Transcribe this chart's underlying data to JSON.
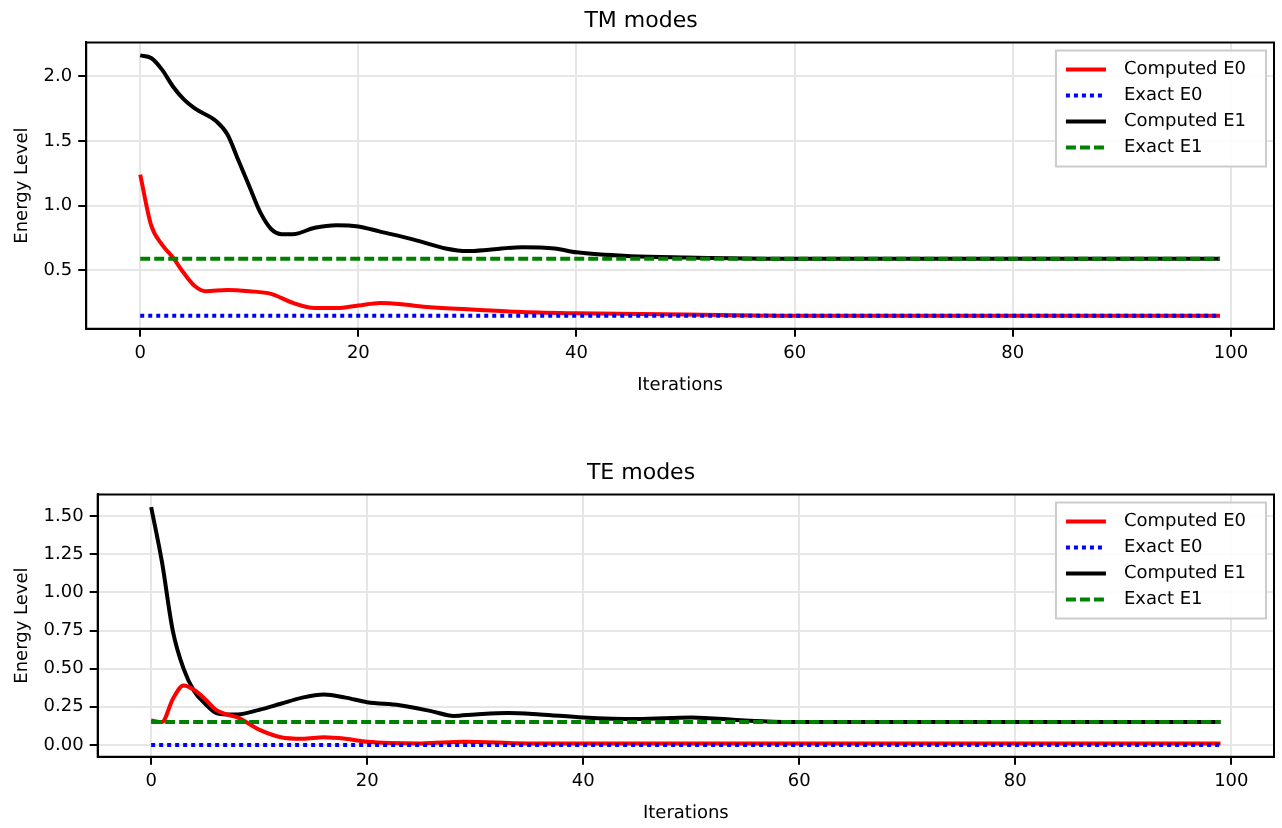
{
  "chart_data": [
    {
      "type": "line",
      "title": "TM modes",
      "xlabel": "Iterations",
      "ylabel": "Energy Level",
      "xlim": [
        -4.95,
        103.95
      ],
      "xticks": [
        0,
        20,
        40,
        60,
        80,
        100
      ],
      "ylim": [
        0.05,
        2.26
      ],
      "yticks": [
        {
          "value": 0.5,
          "label": "0.5"
        },
        {
          "value": 1,
          "label": "1.0"
        },
        {
          "value": 1.5,
          "label": "1.5"
        },
        {
          "value": 2,
          "label": "2.0"
        }
      ],
      "grid": true,
      "legend": "top right",
      "marker": "none",
      "series": [
        {
          "name": "Computed E0",
          "color": "#ff0000",
          "line_style": "solid",
          "x": [
            0,
            1,
            2,
            3,
            4,
            5,
            6,
            8,
            10,
            12,
            14,
            16,
            18,
            20,
            22,
            24,
            26,
            30,
            35,
            40,
            50,
            60,
            99
          ],
          "values": [
            1.24,
            0.85,
            0.7,
            0.6,
            0.48,
            0.38,
            0.34,
            0.35,
            0.34,
            0.32,
            0.25,
            0.21,
            0.21,
            0.23,
            0.25,
            0.24,
            0.22,
            0.2,
            0.18,
            0.17,
            0.16,
            0.15,
            0.15
          ]
        },
        {
          "name": "Exact E0",
          "color": "#0000ff",
          "line_style": "dotted",
          "x": [
            0,
            99
          ],
          "values": [
            0.15,
            0.15
          ]
        },
        {
          "name": "Computed E1",
          "color": "#000000",
          "line_style": "solid",
          "x": [
            0,
            1,
            2,
            3,
            4,
            5,
            7,
            8,
            9,
            10,
            11,
            12,
            13,
            14,
            16,
            18,
            20,
            22,
            25,
            28,
            30,
            32,
            35,
            38,
            40,
            45,
            50,
            60,
            99
          ],
          "values": [
            2.16,
            2.14,
            2.05,
            1.92,
            1.82,
            1.75,
            1.65,
            1.55,
            1.35,
            1.15,
            0.95,
            0.82,
            0.78,
            0.78,
            0.83,
            0.85,
            0.84,
            0.8,
            0.74,
            0.67,
            0.65,
            0.66,
            0.68,
            0.67,
            0.64,
            0.61,
            0.6,
            0.59,
            0.59
          ]
        },
        {
          "name": "Exact E1",
          "color": "#008000",
          "line_style": "dashed",
          "x": [
            0,
            99
          ],
          "values": [
            0.59,
            0.59
          ]
        }
      ]
    },
    {
      "type": "line",
      "title": "TE modes",
      "xlabel": "Iterations",
      "ylabel": "Energy Level",
      "xlim": [
        -4.95,
        103.95
      ],
      "xticks": [
        0,
        20,
        40,
        60,
        80,
        100
      ],
      "ylim": [
        -0.078,
        1.643
      ],
      "yticks": [
        {
          "value": 0,
          "label": "0.00"
        },
        {
          "value": 0.25,
          "label": "0.25"
        },
        {
          "value": 0.5,
          "label": "0.50"
        },
        {
          "value": 0.75,
          "label": "0.75"
        },
        {
          "value": 1,
          "label": "1.00"
        },
        {
          "value": 1.25,
          "label": "1.25"
        },
        {
          "value": 1.5,
          "label": "1.50"
        }
      ],
      "grid": true,
      "legend": "top right",
      "marker": "none",
      "series": [
        {
          "name": "Computed E0",
          "color": "#ff0000",
          "line_style": "solid",
          "x": [
            0,
            1,
            2,
            3,
            4,
            5,
            6,
            7,
            8,
            10,
            12,
            14,
            16,
            18,
            20,
            25,
            29,
            35,
            40,
            60,
            99
          ],
          "values": [
            0.16,
            0.15,
            0.3,
            0.39,
            0.36,
            0.3,
            0.23,
            0.2,
            0.18,
            0.1,
            0.05,
            0.04,
            0.05,
            0.04,
            0.02,
            0.01,
            0.02,
            0.01,
            0.01,
            0.01,
            0.01
          ]
        },
        {
          "name": "Exact E0",
          "color": "#0000ff",
          "line_style": "dotted",
          "x": [
            0,
            99
          ],
          "values": [
            0,
            0
          ]
        },
        {
          "name": "Computed E1",
          "color": "#000000",
          "line_style": "solid",
          "x": [
            0,
            1,
            2,
            3,
            4,
            5,
            6,
            7,
            8,
            10,
            12,
            14,
            16,
            18,
            20,
            23,
            26,
            28,
            30,
            33,
            36,
            40,
            45,
            50,
            55,
            60,
            99
          ],
          "values": [
            1.56,
            1.2,
            0.75,
            0.5,
            0.35,
            0.27,
            0.21,
            0.2,
            0.2,
            0.23,
            0.27,
            0.31,
            0.33,
            0.31,
            0.28,
            0.26,
            0.22,
            0.19,
            0.2,
            0.21,
            0.2,
            0.18,
            0.17,
            0.18,
            0.16,
            0.15,
            0.15
          ]
        },
        {
          "name": "Exact E1",
          "color": "#008000",
          "line_style": "dashed",
          "x": [
            0,
            99
          ],
          "values": [
            0.15,
            0.15
          ]
        }
      ]
    }
  ]
}
